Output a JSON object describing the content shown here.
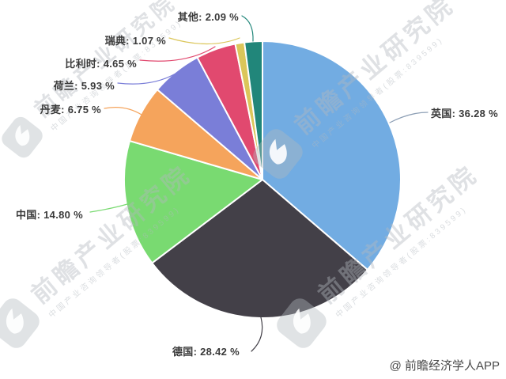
{
  "chart_data": {
    "type": "pie",
    "title": "",
    "unit": "%",
    "label_format": "{name}: {value} %",
    "start_angle": "top",
    "direction": "clockwise",
    "legend": "none",
    "slices": [
      {
        "key": "uk",
        "name": "英国",
        "value": 36.28,
        "color": "#72ACE2"
      },
      {
        "key": "germany",
        "name": "德国",
        "value": 28.42,
        "color": "#434048"
      },
      {
        "key": "china",
        "name": "中国",
        "value": 14.8,
        "color": "#79DA71"
      },
      {
        "key": "denmark",
        "name": "丹麦",
        "value": 6.75,
        "color": "#F5A45C"
      },
      {
        "key": "netherlands",
        "name": "荷兰",
        "value": 5.93,
        "color": "#7A7ED8"
      },
      {
        "key": "belgium",
        "name": "比利时",
        "value": 4.65,
        "color": "#E1496F"
      },
      {
        "key": "sweden",
        "name": "瑞典",
        "value": 1.07,
        "color": "#DBC65A"
      },
      {
        "key": "other",
        "name": "其他",
        "value": 2.09,
        "color": "#21867A"
      }
    ]
  },
  "watermark": {
    "main_text": "前瞻产业研究院",
    "sub_text": "中国产业咨询领导者(股票:839599)",
    "color": "#b2b8bf"
  },
  "credit": "@ 前瞻经济学人APP",
  "colors": {
    "background": "#ffffff",
    "label_text": "#3a3a3a",
    "slice_border": "#ffffff",
    "credit_text": "#4a4a4a",
    "uk_leader_line": "#8d9fb5"
  }
}
